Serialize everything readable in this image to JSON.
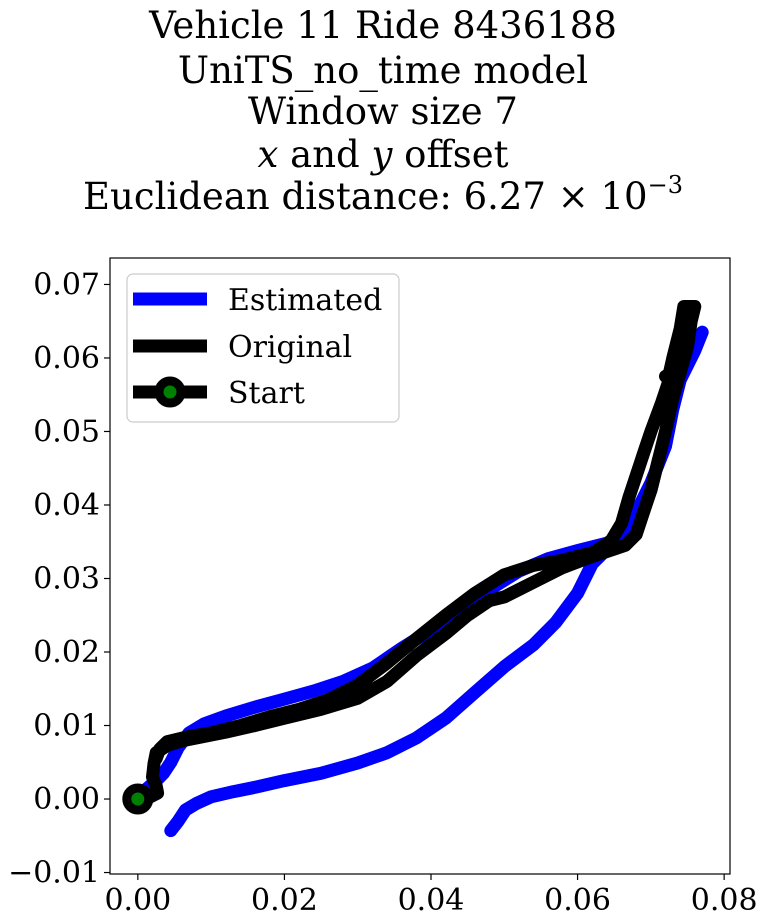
{
  "chart_data": {
    "type": "line",
    "title": {
      "line1": "Vehicle 11 Ride 8436188",
      "line2": "UniTS_no_time model",
      "line3": "Window size 7",
      "line4_var_x": "x",
      "line4_and": " and ",
      "line4_var_y": "y",
      "line4_rest": " offset",
      "line5_prefix": "Euclidean distance: 6.27",
      "line5_times": " × 10",
      "line5_exponent": "−3"
    },
    "xlabel": "",
    "ylabel": "",
    "xlim": [
      -0.0038,
      0.0808
    ],
    "ylim": [
      -0.0102,
      0.0736
    ],
    "xticks": [
      0.0,
      0.02,
      0.04,
      0.06,
      0.08
    ],
    "xtick_labels": [
      "0.00",
      "0.02",
      "0.04",
      "0.06",
      "0.08"
    ],
    "yticks": [
      -0.01,
      0.0,
      0.01,
      0.02,
      0.03,
      0.04,
      0.05,
      0.06,
      0.07
    ],
    "ytick_labels": [
      "−0.01",
      "0.00",
      "0.01",
      "0.02",
      "0.03",
      "0.04",
      "0.05",
      "0.06",
      "0.07"
    ],
    "grid": false,
    "legend_position": "top-left",
    "legend": [
      "Estimated",
      "Original",
      "Start"
    ],
    "series": [
      {
        "name": "Estimated",
        "color": "#0000ff",
        "points": [
          [
            0.0045,
            -0.0043
          ],
          [
            0.0055,
            -0.003
          ],
          [
            0.0065,
            -0.0015
          ],
          [
            0.008,
            -0.0006
          ],
          [
            0.01,
            0.0003
          ],
          [
            0.013,
            0.001
          ],
          [
            0.016,
            0.0016
          ],
          [
            0.02,
            0.0025
          ],
          [
            0.025,
            0.0035
          ],
          [
            0.03,
            0.0049
          ],
          [
            0.034,
            0.0063
          ],
          [
            0.038,
            0.0083
          ],
          [
            0.042,
            0.011
          ],
          [
            0.046,
            0.0145
          ],
          [
            0.05,
            0.018
          ],
          [
            0.054,
            0.021
          ],
          [
            0.057,
            0.024
          ],
          [
            0.06,
            0.028
          ],
          [
            0.062,
            0.032
          ],
          [
            0.064,
            0.034
          ],
          [
            0.066,
            0.036
          ],
          [
            0.068,
            0.039
          ],
          [
            0.07,
            0.043
          ],
          [
            0.072,
            0.048
          ],
          [
            0.073,
            0.053
          ],
          [
            0.074,
            0.057
          ],
          [
            0.076,
            0.061
          ],
          [
            0.077,
            0.0635
          ],
          [
            0.076,
            0.061
          ],
          [
            0.074,
            0.057
          ],
          [
            0.073,
            0.053
          ],
          [
            0.071,
            0.046
          ],
          [
            0.07,
            0.042
          ],
          [
            0.068,
            0.039
          ],
          [
            0.066,
            0.036
          ],
          [
            0.064,
            0.0348
          ],
          [
            0.06,
            0.0338
          ],
          [
            0.056,
            0.0327
          ],
          [
            0.052,
            0.031
          ],
          [
            0.048,
            0.0285
          ],
          [
            0.044,
            0.0255
          ],
          [
            0.04,
            0.023
          ],
          [
            0.036,
            0.0205
          ],
          [
            0.032,
            0.0178
          ],
          [
            0.028,
            0.016
          ],
          [
            0.024,
            0.0147
          ],
          [
            0.02,
            0.0136
          ],
          [
            0.016,
            0.0125
          ],
          [
            0.012,
            0.0113
          ],
          [
            0.009,
            0.0102
          ],
          [
            0.007,
            0.009
          ],
          [
            0.0055,
            0.007
          ],
          [
            0.0045,
            0.005
          ],
          [
            0.0035,
            0.0035
          ],
          [
            0.0025,
            0.0025
          ],
          [
            0.001,
            0.0012
          ],
          [
            0.0,
            0.0
          ]
        ]
      },
      {
        "name": "Original",
        "color": "#000000",
        "points": [
          [
            0.0,
            0.0
          ],
          [
            0.0015,
            0.0002
          ],
          [
            0.0027,
            0.0008
          ],
          [
            0.0025,
            0.0018
          ],
          [
            0.002,
            0.003
          ],
          [
            0.0022,
            0.0048
          ],
          [
            0.0025,
            0.0063
          ],
          [
            0.004,
            0.0073
          ],
          [
            0.006,
            0.0079
          ],
          [
            0.009,
            0.0085
          ],
          [
            0.012,
            0.0091
          ],
          [
            0.016,
            0.01
          ],
          [
            0.02,
            0.011
          ],
          [
            0.025,
            0.0122
          ],
          [
            0.03,
            0.0137
          ],
          [
            0.034,
            0.016
          ],
          [
            0.038,
            0.0195
          ],
          [
            0.042,
            0.0225
          ],
          [
            0.045,
            0.025
          ],
          [
            0.048,
            0.027
          ],
          [
            0.05,
            0.0275
          ],
          [
            0.054,
            0.0295
          ],
          [
            0.058,
            0.0315
          ],
          [
            0.062,
            0.033
          ],
          [
            0.065,
            0.034
          ],
          [
            0.0665,
            0.0345
          ],
          [
            0.068,
            0.036
          ],
          [
            0.069,
            0.039
          ],
          [
            0.07,
            0.042
          ],
          [
            0.071,
            0.046
          ],
          [
            0.072,
            0.05
          ],
          [
            0.073,
            0.0545
          ],
          [
            0.074,
            0.058
          ],
          [
            0.075,
            0.0615
          ],
          [
            0.0755,
            0.065
          ],
          [
            0.076,
            0.067
          ],
          [
            0.0745,
            0.067
          ],
          [
            0.074,
            0.064
          ],
          [
            0.073,
            0.06
          ],
          [
            0.0725,
            0.0578
          ],
          [
            0.072,
            0.0575
          ],
          [
            0.0725,
            0.057
          ],
          [
            0.0715,
            0.054
          ],
          [
            0.07,
            0.05
          ],
          [
            0.069,
            0.047
          ],
          [
            0.068,
            0.044
          ],
          [
            0.067,
            0.041
          ],
          [
            0.066,
            0.0375
          ],
          [
            0.0645,
            0.035
          ],
          [
            0.062,
            0.0335
          ],
          [
            0.058,
            0.0325
          ],
          [
            0.054,
            0.0318
          ],
          [
            0.05,
            0.0305
          ],
          [
            0.046,
            0.028
          ],
          [
            0.042,
            0.025
          ],
          [
            0.038,
            0.0218
          ],
          [
            0.034,
            0.0185
          ],
          [
            0.03,
            0.0155
          ],
          [
            0.026,
            0.0135
          ],
          [
            0.022,
            0.0122
          ],
          [
            0.018,
            0.0112
          ],
          [
            0.014,
            0.01
          ],
          [
            0.01,
            0.009
          ],
          [
            0.007,
            0.0085
          ],
          [
            0.004,
            0.0078
          ],
          [
            0.003,
            0.0068
          ],
          [
            0.0025,
            0.0055
          ]
        ]
      }
    ],
    "start_point": {
      "name": "Start",
      "x": 0.0,
      "y": 0.0,
      "fill": "#008000",
      "edge": "#000000"
    }
  }
}
